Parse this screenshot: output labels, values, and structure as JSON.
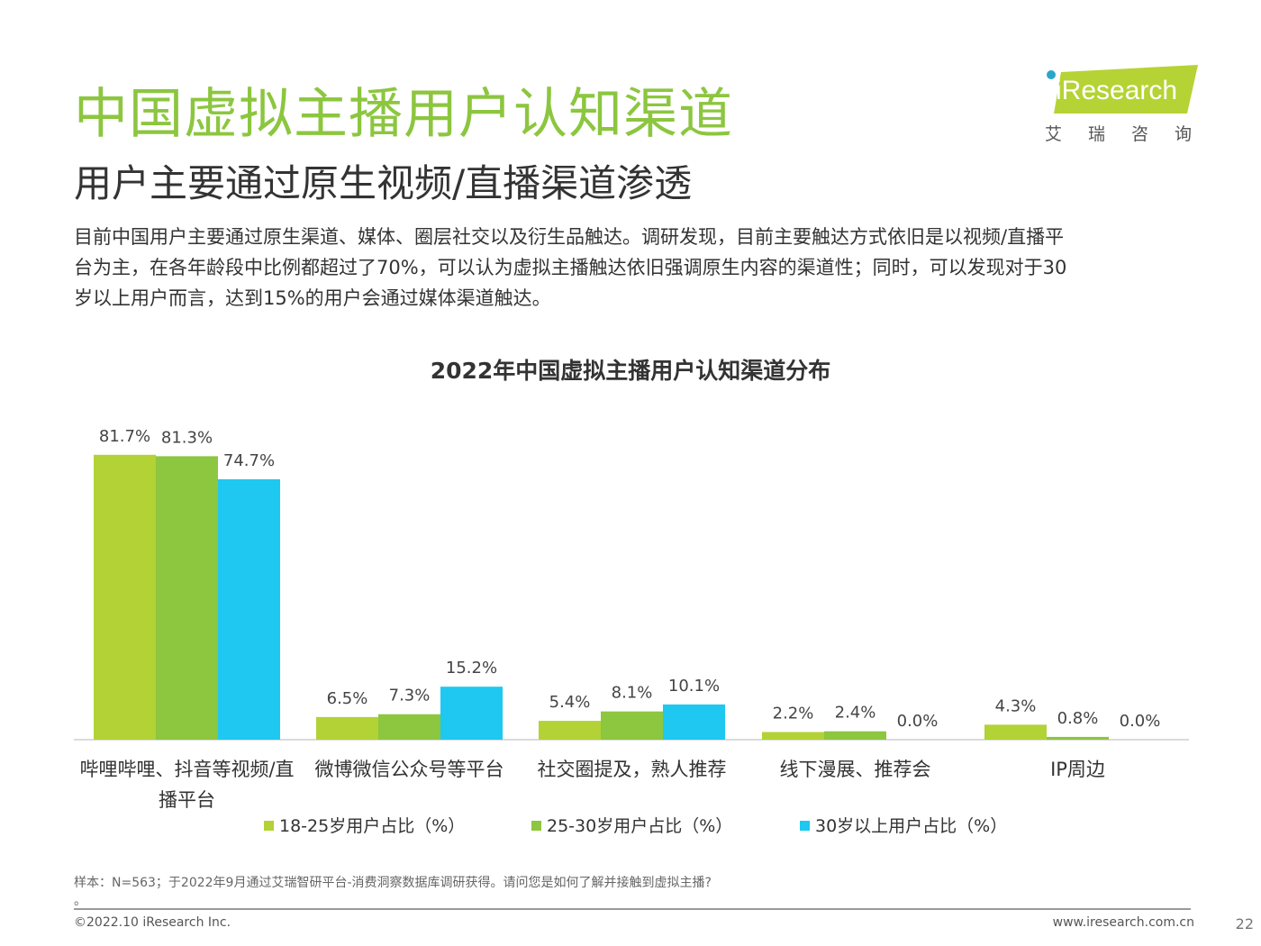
{
  "header": {
    "title": "中国虚拟主播用户认知渠道",
    "subtitle": "用户主要通过原生视频/直播渠道渗透"
  },
  "logo": {
    "brand": "iResearch",
    "cn": "艾瑞咨询",
    "color": "#b5d334"
  },
  "description": {
    "lines": [
      "目前中国用户主要通过原生渠道、媒体、圈层社交以及衍生品触达。调研发现，目前主要触达方式依旧是以视频/直播平",
      "台为主，在各年龄段中比例都超过了70%，可以认为虚拟主播触达依旧强调原生内容的渠道性；同时，可以发现对于30",
      "岁以上用户而言，达到15%的用户会通过媒体渠道触达。"
    ]
  },
  "chart_data": {
    "type": "bar",
    "title": "2022年中国虚拟主播用户认知渠道分布",
    "categories": [
      "哔哩哔哩、抖音等视频/直播平台",
      "微博微信公众号等平台",
      "社交圈提及，熟人推荐",
      "线下漫展、推荐会",
      "IP周边"
    ],
    "category_lines": [
      [
        "哔哩哔哩、抖音等视频/直",
        "播平台"
      ],
      [
        "微博微信公众号等平台"
      ],
      [
        "社交圈提及，熟人推荐"
      ],
      [
        "线下漫展、推荐会"
      ],
      [
        "IP周边"
      ]
    ],
    "series": [
      {
        "name": "18-25岁用户占比（%）",
        "color": "#b2d235",
        "values": [
          81.7,
          6.5,
          5.4,
          2.2,
          4.3
        ]
      },
      {
        "name": "25-30岁用户占比（%）",
        "color": "#8dc63f",
        "values": [
          81.3,
          7.3,
          8.1,
          2.4,
          0.8
        ]
      },
      {
        "name": "30岁以上用户占比（%）",
        "color": "#1ec8f0",
        "values": [
          74.7,
          15.2,
          10.1,
          0.0,
          0.0
        ]
      }
    ],
    "value_format": "%",
    "legend_position": "bottom",
    "grid": false
  },
  "footer": {
    "note_line1": "样本：N=563；于2022年9月通过艾瑞智研平台-消费洞察数据库调研获得。请问您是如何了解并接触到虚拟主播?",
    "note_line2": "。",
    "copyright": "©2022.10 iResearch Inc.",
    "website": "www.iresearch.com.cn",
    "page": "22"
  }
}
